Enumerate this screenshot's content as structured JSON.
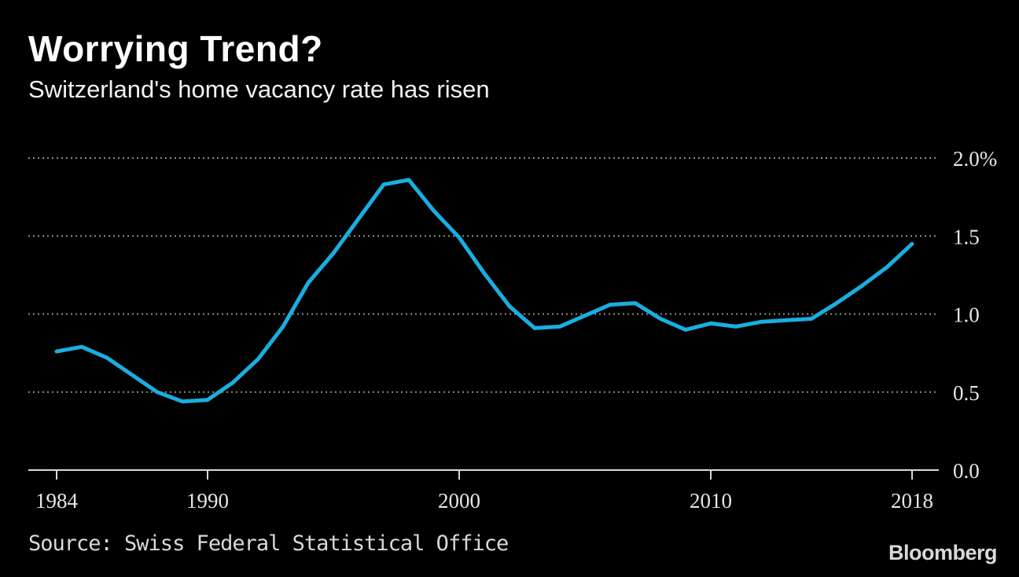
{
  "title": "Worrying Trend?",
  "subtitle": "Switzerland's home vacancy rate has risen",
  "source": "Source: Swiss Federal Statistical Office",
  "brand": "Bloomberg",
  "colors": {
    "background": "#000000",
    "line": "#1aaee0",
    "grid": "#8c8c8c",
    "text": "#ffffff"
  },
  "chart_data": {
    "type": "line",
    "title": "Worrying Trend?",
    "subtitle": "Switzerland's home vacancy rate has risen",
    "xlabel": "",
    "ylabel": "",
    "ylim": [
      0,
      2.0
    ],
    "xlim": [
      1984,
      2018
    ],
    "y_ticks": [
      {
        "value": 2.0,
        "label": "2.0%"
      },
      {
        "value": 1.5,
        "label": "1.5"
      },
      {
        "value": 1.0,
        "label": "1.0"
      },
      {
        "value": 0.5,
        "label": "0.5"
      },
      {
        "value": 0.0,
        "label": "0.0"
      }
    ],
    "x_ticks": [
      {
        "value": 1984,
        "label": "1984"
      },
      {
        "value": 1990,
        "label": "1990"
      },
      {
        "value": 2000,
        "label": "2000"
      },
      {
        "value": 2010,
        "label": "2010"
      },
      {
        "value": 2018,
        "label": "2018"
      }
    ],
    "grid": true,
    "series": [
      {
        "x": [
          1984,
          1985,
          1986,
          1987,
          1988,
          1989,
          1990,
          1991,
          1992,
          1993,
          1994,
          1995,
          1996,
          1997,
          1998,
          1999,
          2000,
          2001,
          2002,
          2003,
          2004,
          2005,
          2006,
          2007,
          2008,
          2009,
          2010,
          2011,
          2012,
          2013,
          2014,
          2015,
          2016,
          2017,
          2018
        ],
        "values": [
          0.76,
          0.79,
          0.72,
          0.61,
          0.5,
          0.44,
          0.45,
          0.56,
          0.71,
          0.92,
          1.2,
          1.39,
          1.61,
          1.83,
          1.86,
          1.66,
          1.49,
          1.26,
          1.05,
          0.91,
          0.92,
          0.99,
          1.06,
          1.07,
          0.97,
          0.9,
          0.94,
          0.92,
          0.95,
          0.96,
          0.97,
          1.07,
          1.18,
          1.3,
          1.45
        ]
      }
    ]
  }
}
